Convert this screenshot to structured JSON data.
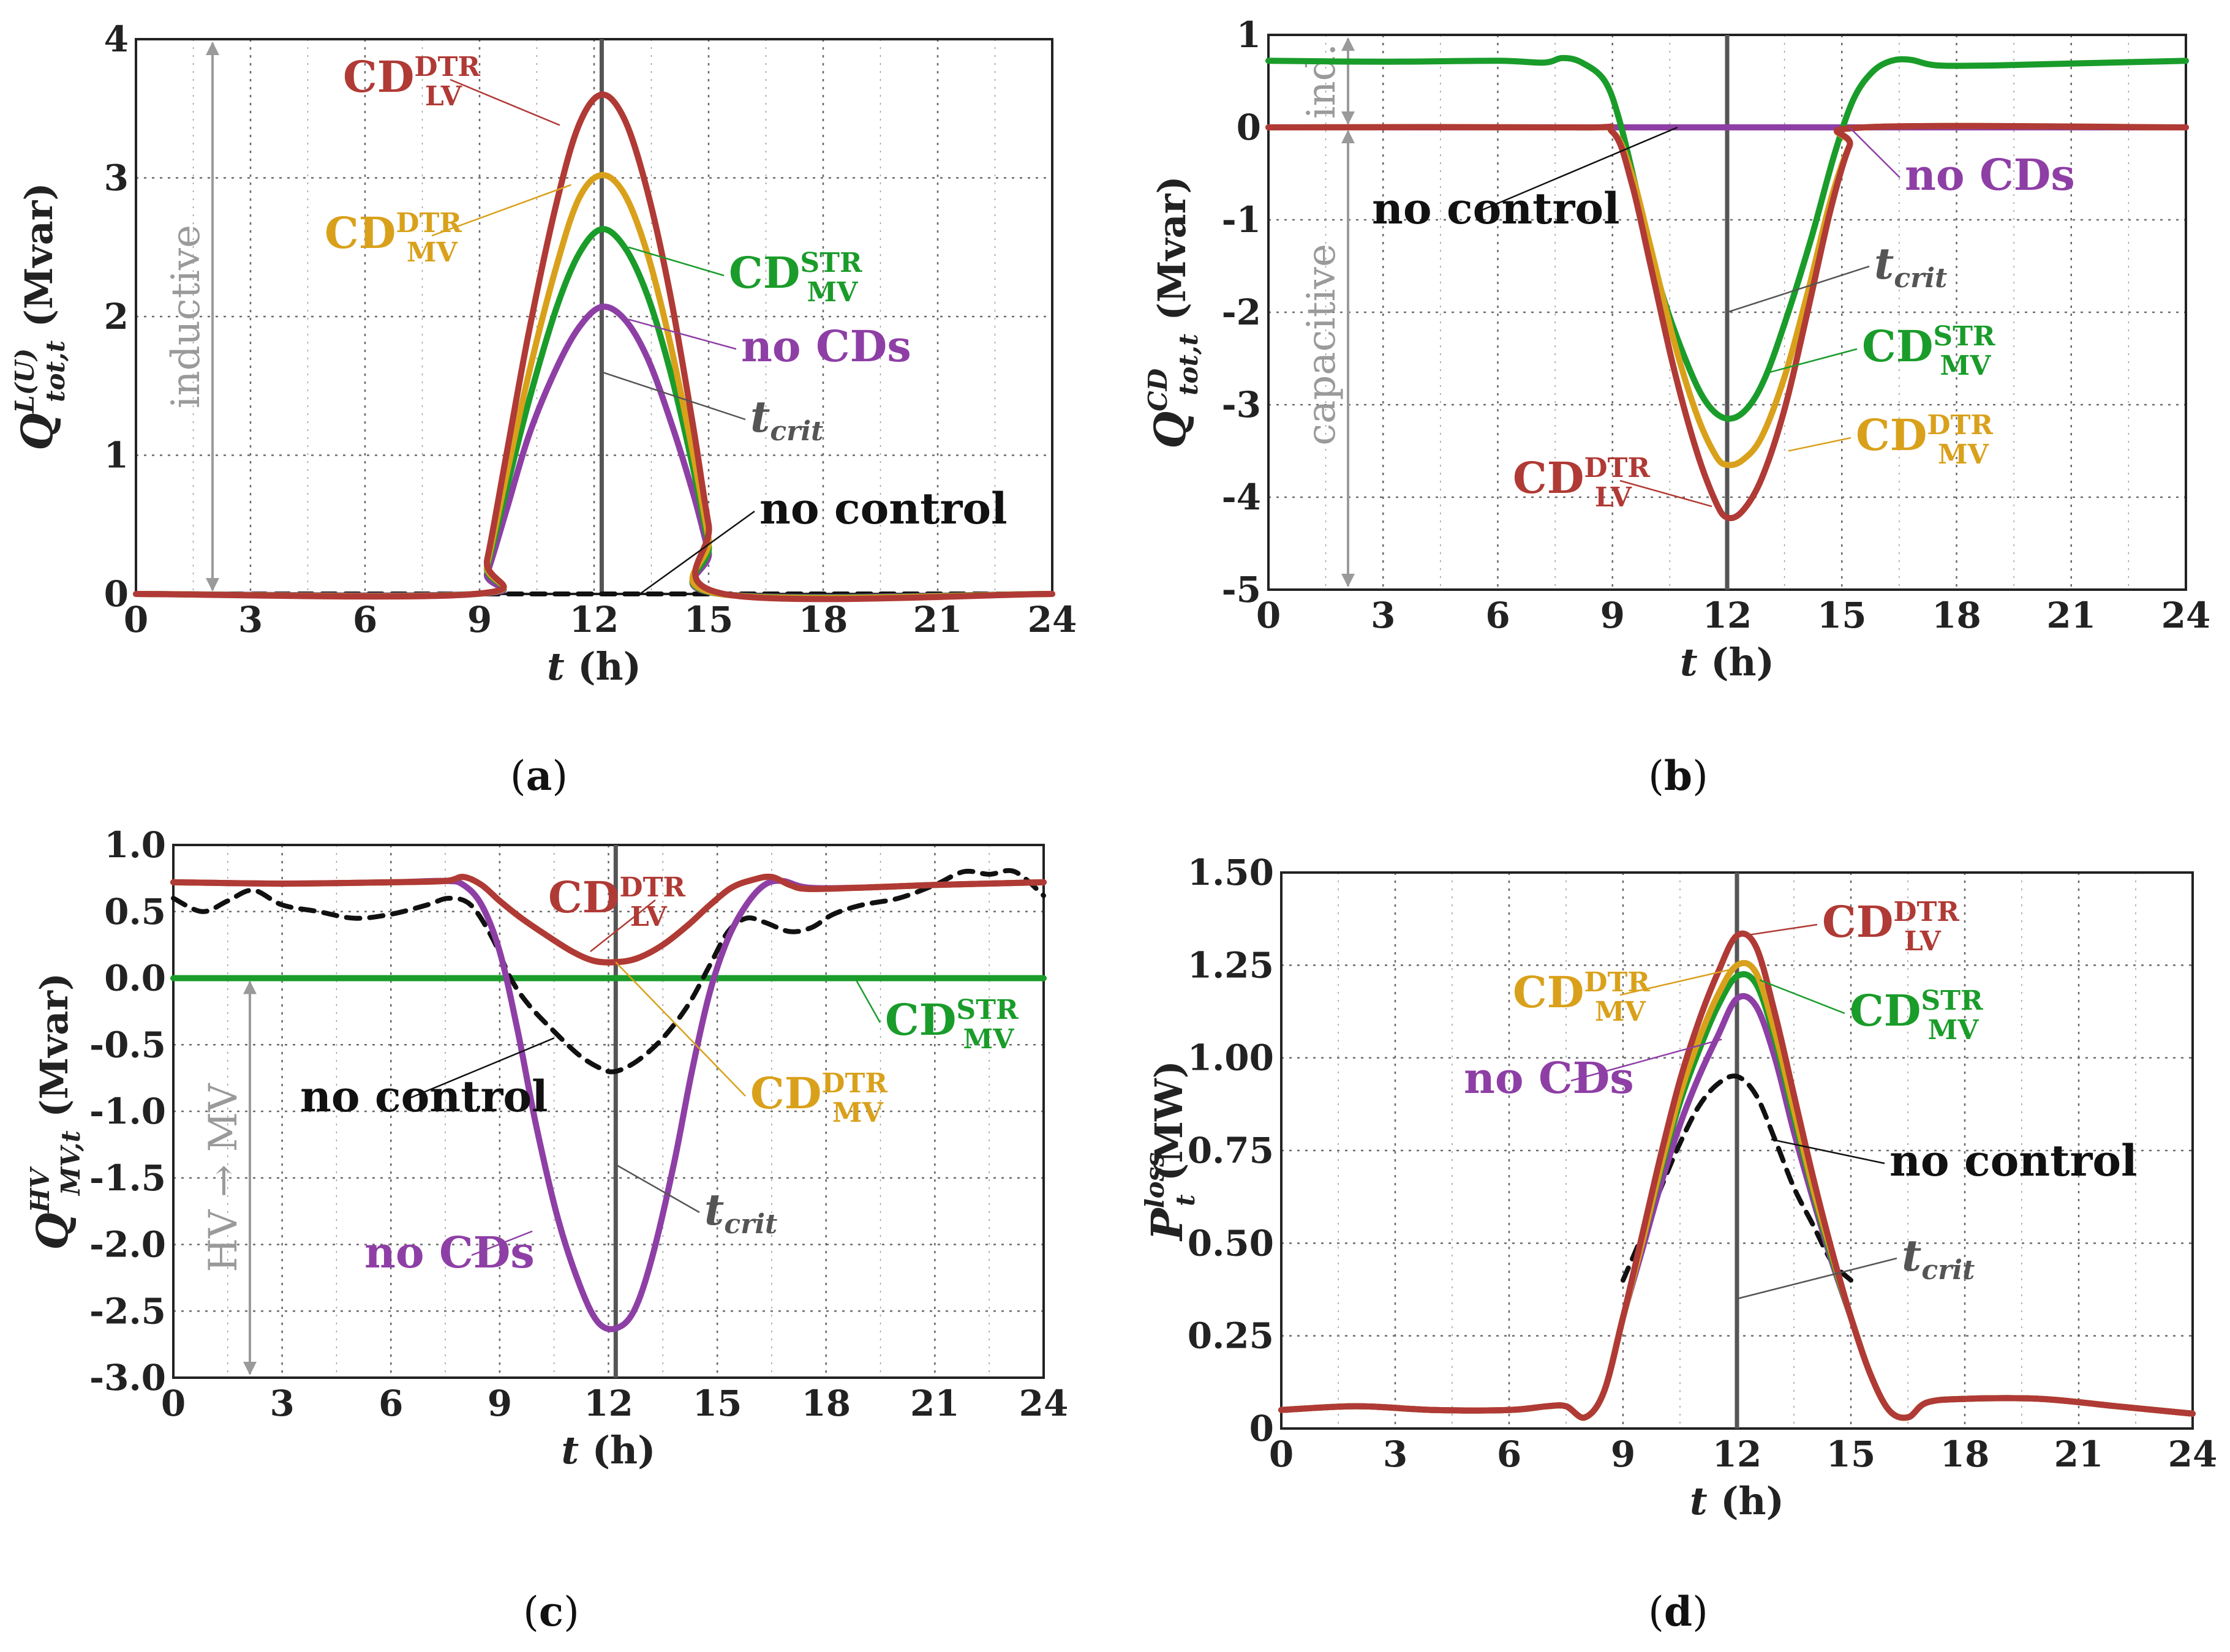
{
  "colors": {
    "cd_dtr_lv": "#b03a35",
    "cd_dtr_mv": "#d9a11b",
    "cd_str_mv": "#1a9c2a",
    "no_cds": "#8e3fa5",
    "no_control": "#111111",
    "t_crit": "#555555",
    "region": "#9a9a9a"
  },
  "legend_text": {
    "cd": "CD",
    "dtr": "DTR",
    "str": "STR",
    "lv": "LV",
    "mv": "MV",
    "no_cds": "no CDs",
    "no_control": "no control",
    "t": "t",
    "crit": "crit"
  },
  "chart_data": [
    {
      "id": "a",
      "caption_letter": "a",
      "type": "line",
      "xlabel": "t (h)",
      "ylabel_sym": "Q",
      "ylabel_sup": "L(U)",
      "ylabel_sub": "tot,t",
      "ylabel_unit": "(Mvar)",
      "xlim": [
        0,
        24
      ],
      "ylim": [
        0,
        4
      ],
      "xticks": [
        "0",
        "3",
        "6",
        "9",
        "12",
        "15",
        "18",
        "21",
        "24"
      ],
      "yticks": [
        "0",
        "1",
        "2",
        "3",
        "4"
      ],
      "t_crit": 12.2,
      "region_labels": [
        "inductive"
      ],
      "series": [
        {
          "name": "no control",
          "key": "no_control",
          "dashed": true,
          "x": [
            0,
            9,
            12,
            15.5,
            24
          ],
          "y": [
            0,
            0,
            0,
            0,
            0
          ]
        },
        {
          "name": "no CDs",
          "key": "no_cds",
          "x": [
            0,
            8.9,
            9.2,
            9.7,
            10.3,
            11,
            11.6,
            12.2,
            12.8,
            13.4,
            14,
            14.6,
            15,
            15.3,
            24
          ],
          "y": [
            0,
            0,
            0.15,
            0.6,
            1.15,
            1.62,
            1.92,
            2.07,
            1.98,
            1.7,
            1.25,
            0.72,
            0.3,
            0,
            0
          ]
        },
        {
          "name": "CD STR MV",
          "key": "cd_str_mv",
          "x": [
            0,
            8.9,
            9.2,
            9.7,
            10.3,
            11,
            11.6,
            12.2,
            12.8,
            13.4,
            14,
            14.6,
            15,
            15.3,
            24
          ],
          "y": [
            0,
            0,
            0.2,
            0.75,
            1.4,
            2.05,
            2.45,
            2.63,
            2.5,
            2.15,
            1.6,
            0.9,
            0.35,
            0,
            0
          ]
        },
        {
          "name": "CD DTR MV",
          "key": "cd_dtr_mv",
          "x": [
            0,
            8.9,
            9.2,
            9.7,
            10.3,
            11,
            11.6,
            12.2,
            12.8,
            13.4,
            14,
            14.6,
            15,
            15.3,
            24
          ],
          "y": [
            0,
            0,
            0.22,
            0.85,
            1.6,
            2.35,
            2.85,
            3.02,
            2.88,
            2.45,
            1.8,
            1.0,
            0.4,
            0,
            0
          ]
        },
        {
          "name": "CD DTR LV",
          "key": "cd_dtr_lv",
          "x": [
            0,
            8.9,
            9.2,
            9.7,
            10.3,
            11,
            11.6,
            12.2,
            12.8,
            13.4,
            14,
            14.6,
            15,
            15.4,
            24
          ],
          "y": [
            0,
            0,
            0.25,
            1.0,
            1.9,
            2.8,
            3.38,
            3.6,
            3.42,
            2.9,
            2.15,
            1.2,
            0.5,
            0,
            0
          ]
        }
      ]
    },
    {
      "id": "b",
      "caption_letter": "b",
      "type": "line",
      "xlabel": "t (h)",
      "ylabel_sym": "Q",
      "ylabel_sup": "CD",
      "ylabel_sub": "tot,t",
      "ylabel_unit": "(Mvar)",
      "xlim": [
        0,
        24
      ],
      "ylim": [
        -5,
        1
      ],
      "xticks": [
        "0",
        "3",
        "6",
        "9",
        "12",
        "15",
        "18",
        "21",
        "24"
      ],
      "yticks": [
        "-5",
        "-4",
        "-3",
        "-2",
        "-1",
        "0",
        "1"
      ],
      "t_crit": 12.0,
      "region_labels": [
        "ind.",
        "capacitive"
      ],
      "series": [
        {
          "name": "no control",
          "key": "no_control",
          "dashed": true,
          "x": [
            0,
            9,
            12,
            15,
            24
          ],
          "y": [
            0,
            0,
            0,
            0,
            0
          ]
        },
        {
          "name": "no CDs",
          "key": "no_cds",
          "x": [
            0,
            9,
            12,
            15,
            24
          ],
          "y": [
            0,
            0,
            0,
            0,
            0
          ]
        },
        {
          "name": "CD STR MV",
          "key": "cd_str_mv",
          "x": [
            0,
            3,
            6,
            7.2,
            7.7,
            8.2,
            8.8,
            9.2,
            9.7,
            10.3,
            11,
            11.5,
            12,
            12.5,
            13,
            13.6,
            14.2,
            14.8,
            15.3,
            15.8,
            16.3,
            16.8,
            17.5,
            19,
            21,
            24
          ],
          "y": [
            0.72,
            0.71,
            0.72,
            0.7,
            0.75,
            0.7,
            0.5,
            0.05,
            -0.8,
            -1.8,
            -2.6,
            -3.0,
            -3.15,
            -3.05,
            -2.7,
            -2.0,
            -1.2,
            -0.3,
            0.3,
            0.6,
            0.72,
            0.73,
            0.67,
            0.67,
            0.69,
            0.72
          ]
        },
        {
          "name": "CD DTR MV",
          "key": "cd_dtr_mv",
          "x": [
            0,
            8,
            9,
            9.5,
            10,
            10.6,
            11.2,
            11.7,
            12,
            12.4,
            12.9,
            13.5,
            14.1,
            14.7,
            15.2,
            15.6,
            24
          ],
          "y": [
            0,
            0,
            -0.05,
            -0.5,
            -1.3,
            -2.3,
            -3.1,
            -3.55,
            -3.65,
            -3.6,
            -3.35,
            -2.7,
            -1.8,
            -0.8,
            -0.2,
            0,
            0
          ]
        },
        {
          "name": "CD DTR LV",
          "key": "cd_dtr_lv",
          "x": [
            0,
            8,
            9,
            9.5,
            10,
            10.6,
            11.2,
            11.7,
            12,
            12.4,
            12.9,
            13.5,
            14.1,
            14.7,
            15.2,
            15.6,
            24
          ],
          "y": [
            0,
            0,
            -0.05,
            -0.6,
            -1.5,
            -2.6,
            -3.5,
            -4.05,
            -4.22,
            -4.15,
            -3.8,
            -3.05,
            -2.0,
            -0.9,
            -0.2,
            0,
            0
          ]
        }
      ]
    },
    {
      "id": "c",
      "caption_letter": "c",
      "type": "line",
      "xlabel": "t (h)",
      "ylabel_sym": "Q",
      "ylabel_sup": "HV",
      "ylabel_sub": "MV,t",
      "ylabel_unit": "(Mvar)",
      "xlim": [
        0,
        24
      ],
      "ylim": [
        -3.0,
        1.0
      ],
      "xticks": [
        "0",
        "3",
        "6",
        "9",
        "12",
        "15",
        "18",
        "21",
        "24"
      ],
      "yticks": [
        "-3.0",
        "-2.5",
        "-2.0",
        "-1.5",
        "-1.0",
        "-0.5",
        "0.0",
        "0.5",
        "1.0"
      ],
      "t_crit": 12.2,
      "region_labels": [
        "HV → MV"
      ],
      "series": [
        {
          "name": "CD STR MV",
          "key": "cd_str_mv",
          "x": [
            0,
            24
          ],
          "y": [
            0,
            0
          ]
        },
        {
          "name": "no control",
          "key": "no_control",
          "dashed": true,
          "x": [
            0,
            0.8,
            1.5,
            2.2,
            3,
            4,
            5,
            6,
            7,
            7.6,
            8.2,
            8.8,
            9.3,
            9.8,
            10.5,
            11.2,
            11.8,
            12.2,
            12.8,
            13.5,
            14.2,
            14.8,
            15.3,
            15.8,
            16.3,
            17,
            17.6,
            18.2,
            19,
            20,
            21,
            21.8,
            22.5,
            23.2,
            24
          ],
          "y": [
            0.6,
            0.5,
            0.58,
            0.66,
            0.55,
            0.5,
            0.45,
            0.48,
            0.55,
            0.6,
            0.55,
            0.3,
            0.0,
            -0.2,
            -0.4,
            -0.58,
            -0.68,
            -0.7,
            -0.62,
            -0.45,
            -0.2,
            0.1,
            0.35,
            0.45,
            0.42,
            0.35,
            0.38,
            0.48,
            0.55,
            0.6,
            0.7,
            0.8,
            0.78,
            0.8,
            0.62
          ]
        },
        {
          "name": "no CDs",
          "key": "no_cds",
          "x": [
            0,
            3,
            6,
            7.5,
            8,
            8.5,
            9,
            9.5,
            10,
            10.6,
            11.2,
            11.7,
            12.2,
            12.7,
            13.2,
            13.8,
            14.3,
            14.8,
            15.3,
            15.8,
            16.3,
            16.8,
            17.5,
            19,
            21,
            24
          ],
          "y": [
            0.72,
            0.71,
            0.72,
            0.73,
            0.7,
            0.55,
            0.2,
            -0.4,
            -1.1,
            -1.8,
            -2.3,
            -2.58,
            -2.63,
            -2.5,
            -2.1,
            -1.4,
            -0.7,
            -0.1,
            0.3,
            0.55,
            0.7,
            0.73,
            0.68,
            0.68,
            0.7,
            0.72
          ]
        },
        {
          "name": "CD DTR MV",
          "key": "cd_dtr_mv",
          "x": [
            0,
            3,
            6,
            7.5,
            8,
            8.5,
            9,
            9.6,
            10.3,
            11,
            11.6,
            12.2,
            12.8,
            13.5,
            14.2,
            14.8,
            15.4,
            16,
            16.5,
            17,
            17.5,
            19,
            21,
            24
          ],
          "y": [
            0.72,
            0.71,
            0.72,
            0.73,
            0.76,
            0.7,
            0.58,
            0.45,
            0.32,
            0.2,
            0.13,
            0.12,
            0.15,
            0.25,
            0.4,
            0.55,
            0.68,
            0.74,
            0.76,
            0.7,
            0.67,
            0.68,
            0.7,
            0.72
          ]
        },
        {
          "name": "CD DTR LV",
          "key": "cd_dtr_lv",
          "x": [
            0,
            3,
            6,
            7.5,
            8,
            8.5,
            9,
            9.6,
            10.3,
            11,
            11.6,
            12.2,
            12.8,
            13.5,
            14.2,
            14.8,
            15.4,
            16,
            16.5,
            17,
            17.5,
            19,
            21,
            24
          ],
          "y": [
            0.72,
            0.71,
            0.72,
            0.73,
            0.76,
            0.7,
            0.58,
            0.45,
            0.32,
            0.2,
            0.13,
            0.12,
            0.15,
            0.25,
            0.4,
            0.55,
            0.68,
            0.74,
            0.76,
            0.7,
            0.67,
            0.68,
            0.7,
            0.72
          ]
        }
      ]
    },
    {
      "id": "d",
      "caption_letter": "d",
      "type": "line",
      "xlabel": "t (h)",
      "ylabel_sym": "P",
      "ylabel_sup": "loss",
      "ylabel_sub": "t",
      "ylabel_unit": "(MW)",
      "xlim": [
        0,
        24
      ],
      "ylim": [
        0,
        1.5
      ],
      "xticks": [
        "0",
        "3",
        "6",
        "9",
        "12",
        "15",
        "18",
        "21",
        "24"
      ],
      "yticks": [
        "0",
        "0.25",
        "0.50",
        "0.75",
        "1.00",
        "1.25",
        "1.50"
      ],
      "t_crit": 12.0,
      "region_labels": [],
      "series": [
        {
          "name": "no control",
          "key": "no_control",
          "dashed": true,
          "x": [
            9,
            9.5,
            10,
            10.5,
            11,
            11.5,
            12,
            12.5,
            13,
            13.5,
            14,
            14.5,
            15
          ],
          "y": [
            0.4,
            0.52,
            0.65,
            0.77,
            0.87,
            0.93,
            0.95,
            0.9,
            0.78,
            0.65,
            0.55,
            0.45,
            0.4
          ]
        },
        {
          "name": "no CDs",
          "key": "no_cds",
          "x": [
            0,
            2,
            4,
            6,
            7,
            7.5,
            8,
            8.5,
            9,
            9.5,
            10,
            10.5,
            11,
            11.5,
            12,
            12.5,
            13,
            13.5,
            14,
            14.5,
            15,
            15.5,
            16,
            16.5,
            17,
            18,
            20,
            22,
            24
          ],
          "y": [
            0.05,
            0.06,
            0.05,
            0.05,
            0.06,
            0.06,
            0.03,
            0.1,
            0.3,
            0.48,
            0.66,
            0.82,
            0.95,
            1.06,
            1.16,
            1.14,
            1.0,
            0.8,
            0.62,
            0.45,
            0.3,
            0.15,
            0.05,
            0.03,
            0.07,
            0.08,
            0.08,
            0.06,
            0.04
          ]
        },
        {
          "name": "CD STR MV",
          "key": "cd_str_mv",
          "x": [
            0,
            2,
            4,
            6,
            7,
            7.5,
            8,
            8.5,
            9,
            9.5,
            10,
            10.5,
            11,
            11.5,
            12,
            12.5,
            13,
            13.5,
            14,
            14.5,
            15,
            15.5,
            16,
            16.5,
            17,
            18,
            20,
            22,
            24
          ],
          "y": [
            0.05,
            0.06,
            0.05,
            0.05,
            0.06,
            0.06,
            0.03,
            0.1,
            0.3,
            0.5,
            0.7,
            0.88,
            1.02,
            1.14,
            1.22,
            1.2,
            1.05,
            0.84,
            0.64,
            0.46,
            0.3,
            0.15,
            0.05,
            0.03,
            0.07,
            0.08,
            0.08,
            0.06,
            0.04
          ]
        },
        {
          "name": "CD DTR MV",
          "key": "cd_dtr_mv",
          "x": [
            0,
            2,
            4,
            6,
            7,
            7.5,
            8,
            8.5,
            9,
            9.5,
            10,
            10.5,
            11,
            11.5,
            12,
            12.5,
            13,
            13.5,
            14,
            14.5,
            15,
            15.5,
            16,
            16.5,
            17,
            18,
            20,
            22,
            24
          ],
          "y": [
            0.05,
            0.06,
            0.05,
            0.05,
            0.06,
            0.06,
            0.03,
            0.1,
            0.3,
            0.5,
            0.71,
            0.9,
            1.05,
            1.17,
            1.25,
            1.23,
            1.07,
            0.86,
            0.65,
            0.47,
            0.3,
            0.15,
            0.05,
            0.03,
            0.07,
            0.08,
            0.08,
            0.06,
            0.04
          ]
        },
        {
          "name": "CD DTR LV",
          "key": "cd_dtr_lv",
          "x": [
            0,
            2,
            4,
            6,
            7,
            7.5,
            8,
            8.5,
            9,
            9.5,
            10,
            10.5,
            11,
            11.5,
            12,
            12.5,
            13,
            13.5,
            14,
            14.5,
            15,
            15.5,
            16,
            16.5,
            17,
            18,
            20,
            22,
            24
          ],
          "y": [
            0.05,
            0.06,
            0.05,
            0.05,
            0.06,
            0.06,
            0.03,
            0.1,
            0.3,
            0.52,
            0.74,
            0.94,
            1.1,
            1.23,
            1.33,
            1.3,
            1.12,
            0.9,
            0.68,
            0.48,
            0.3,
            0.15,
            0.05,
            0.03,
            0.07,
            0.08,
            0.08,
            0.06,
            0.04
          ]
        }
      ]
    }
  ]
}
